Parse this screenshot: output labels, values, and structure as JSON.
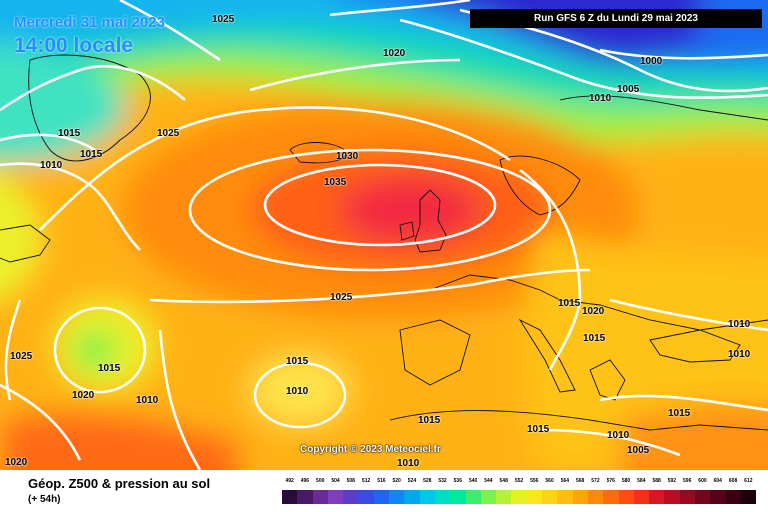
{
  "header": {
    "date": "Mercredi 31 mai 2023",
    "time": "14:00 locale"
  },
  "run_info": "Run GFS 6 Z du Lundi 29 mai 2023",
  "copyright": "Copyright © 2023 Meteociel.fr",
  "footer": {
    "title": "Géop. Z500 & pression au sol",
    "subtitle": "(+ 54h)"
  },
  "isobar_labels": [
    "1025",
    "1020",
    "1000",
    "1005",
    "1010",
    "1025",
    "1015",
    "1015",
    "1010",
    "1030",
    "1035",
    "1025",
    "1015",
    "1020",
    "1015",
    "1010",
    "1025",
    "1015",
    "1020",
    "1010",
    "1015",
    "1010",
    "1015",
    "1015",
    "1015",
    "1010",
    "1005",
    "1020",
    "1010",
    "1010"
  ],
  "scale": {
    "labels": [
      "492",
      "496",
      "500",
      "504",
      "508",
      "512",
      "516",
      "520",
      "524",
      "528",
      "532",
      "536",
      "540",
      "544",
      "548",
      "552",
      "556",
      "560",
      "564",
      "568",
      "572",
      "576",
      "580",
      "584",
      "588",
      "592",
      "596",
      "600",
      "604",
      "608",
      "612"
    ],
    "colors": [
      "#2a0c38",
      "#4b1a66",
      "#6b2a95",
      "#7f3dbf",
      "#5a3ccf",
      "#3b4be6",
      "#1f64f2",
      "#0f86f5",
      "#00a8f0",
      "#00c7e8",
      "#00dcc8",
      "#00e89c",
      "#3cee6e",
      "#7cf24c",
      "#b5f232",
      "#e4f024",
      "#fbe51e",
      "#ffd21a",
      "#ffbc14",
      "#ffa30f",
      "#ff870c",
      "#ff6a0a",
      "#ff4c10",
      "#f0301a",
      "#d61824",
      "#b80d22",
      "#960920",
      "#74061c",
      "#540416",
      "#3a0210",
      "#1f000a"
    ]
  }
}
